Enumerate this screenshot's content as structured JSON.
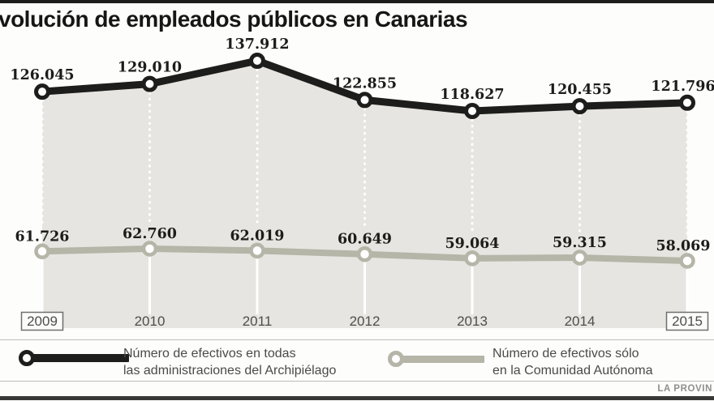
{
  "title": "volución de empleados públicos en Canarias",
  "source": "LA PROVIN",
  "colors": {
    "series_all": "#1d1d1b",
    "series_autonomous": "#b5b5a8",
    "area_fill": "#e6e5e1",
    "guide_lines": "#ffffff",
    "year_label": "#4d4d4b",
    "data_label": "#1c1c1a"
  },
  "legend": {
    "items": [
      {
        "line1": "Número de efectivos en todas",
        "line2": "las administraciones del Archipiélago"
      },
      {
        "line1": "Número de efectivos sólo",
        "line2": "en la Comunidad Autónoma"
      }
    ]
  },
  "chart_data": {
    "type": "line",
    "title": "volución de empleados públicos en Canarias",
    "categories": [
      "2009",
      "2010",
      "2011",
      "2012",
      "2013",
      "2014",
      "2015"
    ],
    "boxed_category_labels": [
      "2009",
      "2015"
    ],
    "series": [
      {
        "name": "Número de efectivos en todas las administraciones del Archipiélago",
        "values": [
          126045,
          129010,
          137912,
          122855,
          118627,
          120455,
          121796
        ],
        "labels": [
          "126.045",
          "129.010",
          "137.912",
          "122.855",
          "118.627",
          "120.455",
          "121.796"
        ],
        "color": "#1d1d1b",
        "area_under": true
      },
      {
        "name": "Número de efectivos sólo en la Comunidad Autónoma",
        "values": [
          61726,
          62760,
          62019,
          60649,
          59064,
          59315,
          58069
        ],
        "labels": [
          "61.726",
          "62.760",
          "62.019",
          "60.649",
          "59.064",
          "59.315",
          "58.069"
        ],
        "color": "#b5b5a8",
        "area_under": false
      }
    ],
    "xlabel": "",
    "ylabel": "",
    "grid": "vertical white guide lines at each year (dashed between series, solid below)",
    "legend_position": "bottom"
  }
}
